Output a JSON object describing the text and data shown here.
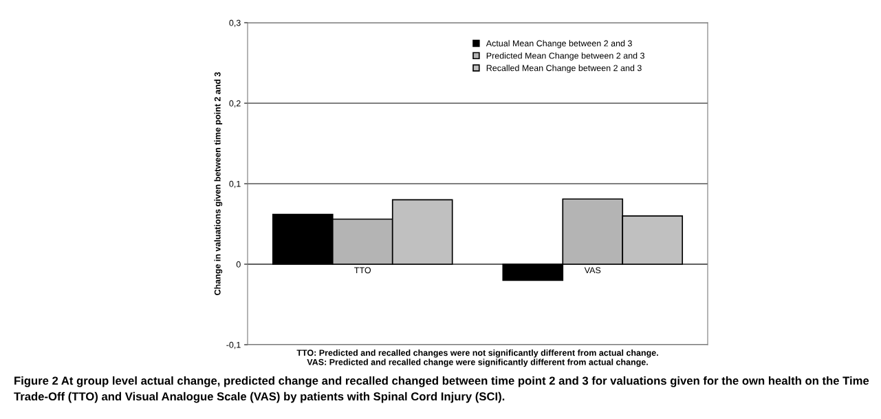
{
  "chart_data": {
    "type": "bar",
    "categories": [
      "TTO",
      "VAS"
    ],
    "ylabel": "Change in valuations given between time point 2 and 3",
    "series": [
      {
        "name": "Actual Mean Change between 2 and 3",
        "color": "#000000",
        "values": [
          0.062,
          -0.02
        ]
      },
      {
        "name": "Predicted Mean Change between 2 and 3",
        "color": "#b4b4b4",
        "values": [
          0.056,
          0.081
        ]
      },
      {
        "name": "Recalled Mean Change between 2 and 3",
        "color": "#c0c0c0",
        "values": [
          0.08,
          0.06
        ]
      }
    ],
    "ylim": [
      -0.1,
      0.3
    ],
    "yticks": [
      {
        "value": -0.1,
        "label": "-0,1"
      },
      0,
      {
        "value": 0.1,
        "label": "0,1"
      },
      {
        "value": 0.2,
        "label": "0,2"
      },
      {
        "value": 0.3,
        "label": "0,3"
      }
    ],
    "grid": "y",
    "legend": "top right",
    "annotations": [
      "TTO: Predicted and recalled changes were not significantly different from actual change.\nVAS: Predicted and recalled change were significantly different from actual change.",
      "Figure 2 At group level actual change, predicted change and recalled changed between time point 2 and 3 for valuations given for the own health on the Time Trade-Off (TTO) and Visual Analogue Scale (VAS) by patients with Spinal Cord Injury (SCI)."
    ]
  }
}
